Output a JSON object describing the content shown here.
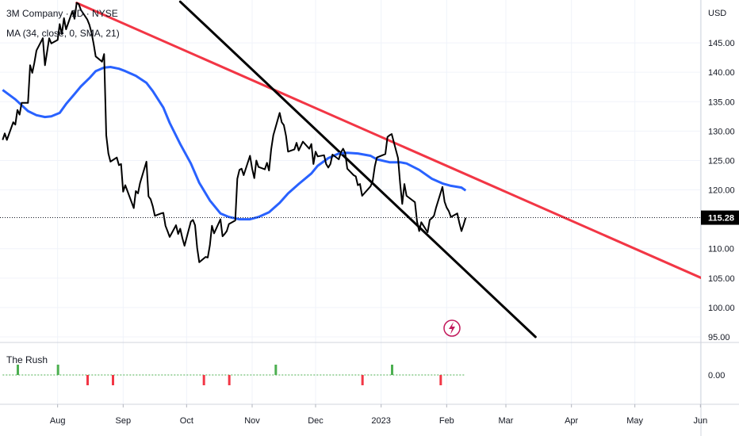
{
  "legend": {
    "title": "3M Company · 1D · NYSE",
    "ma": "MA (34, close, 0, SMA, 21)",
    "rush": "The Rush"
  },
  "colors": {
    "price": "#000000",
    "ma": "#2962ff",
    "trend_red": "#f23645",
    "trend_black": "#000000",
    "badge": "#000000",
    "rush_up": "#4caf50",
    "rush_down": "#f23645",
    "icon": "#c2185b"
  },
  "icons": {
    "event": "lightning-icon"
  },
  "chart_data": {
    "type": "line",
    "currency": "USD",
    "last_price": "115.28",
    "ylim": [
      95,
      152
    ],
    "y_ticks": [
      "145.00",
      "140.00",
      "135.00",
      "130.00",
      "125.00",
      "120.00",
      "110.00",
      "105.00",
      "100.00",
      "95.00"
    ],
    "y_tick_values": [
      145,
      140,
      135,
      130,
      125,
      120,
      110,
      105,
      100,
      95
    ],
    "x_labels": [
      "Aug",
      "Sep",
      "Oct",
      "Nov",
      "Dec",
      "2023",
      "Feb",
      "Mar",
      "Apr",
      "May",
      "Jun"
    ],
    "x_label_dates": [
      "2022-08-01",
      "2022-09-01",
      "2022-10-01",
      "2022-11-01",
      "2022-12-01",
      "2023-01-01",
      "2023-02-01",
      "2023-03-01",
      "2023-04-01",
      "2023-05-01",
      "2023-06-01"
    ],
    "x_range": [
      "2022-07-06",
      "2023-06-18"
    ],
    "series": [
      {
        "kind": "price",
        "points": [
          [
            "2022-07-06",
            128.5
          ],
          [
            "2022-07-07",
            129.6
          ],
          [
            "2022-07-08",
            128.5
          ],
          [
            "2022-07-11",
            131.5
          ],
          [
            "2022-07-12",
            131.1
          ],
          [
            "2022-07-13",
            133.6
          ],
          [
            "2022-07-14",
            132.8
          ],
          [
            "2022-07-15",
            134.8
          ],
          [
            "2022-07-18",
            134.8
          ],
          [
            "2022-07-19",
            141.2
          ],
          [
            "2022-07-20",
            139.9
          ],
          [
            "2022-07-21",
            141.6
          ],
          [
            "2022-07-22",
            143.7
          ],
          [
            "2022-07-25",
            145.8
          ],
          [
            "2022-07-26",
            141.2
          ],
          [
            "2022-07-27",
            143.4
          ],
          [
            "2022-07-28",
            145.8
          ],
          [
            "2022-07-29",
            144.9
          ],
          [
            "2022-08-01",
            145.5
          ],
          [
            "2022-08-02",
            148.2
          ],
          [
            "2022-08-03",
            146.5
          ],
          [
            "2022-08-04",
            149.2
          ],
          [
            "2022-08-05",
            147.3
          ],
          [
            "2022-08-08",
            150.4
          ],
          [
            "2022-08-09",
            149.1
          ],
          [
            "2022-08-10",
            151.8
          ],
          [
            "2022-08-11",
            151.6
          ],
          [
            "2022-08-12",
            150.6
          ],
          [
            "2022-08-15",
            149.0
          ],
          [
            "2022-08-16",
            148.1
          ],
          [
            "2022-08-17",
            146.8
          ],
          [
            "2022-08-18",
            144.9
          ],
          [
            "2022-08-19",
            142.7
          ],
          [
            "2022-08-22",
            141.8
          ],
          [
            "2022-08-23",
            143.1
          ],
          [
            "2022-08-24",
            129.3
          ],
          [
            "2022-08-25",
            126.2
          ],
          [
            "2022-08-26",
            124.8
          ],
          [
            "2022-08-29",
            125.5
          ],
          [
            "2022-08-30",
            124.2
          ],
          [
            "2022-08-31",
            124.4
          ],
          [
            "2022-09-01",
            119.7
          ],
          [
            "2022-09-02",
            120.8
          ],
          [
            "2022-09-06",
            116.9
          ],
          [
            "2022-09-07",
            119.8
          ],
          [
            "2022-09-08",
            119.4
          ],
          [
            "2022-09-09",
            121.2
          ],
          [
            "2022-09-12",
            124.8
          ],
          [
            "2022-09-13",
            118.9
          ],
          [
            "2022-09-14",
            118.4
          ],
          [
            "2022-09-15",
            117.2
          ],
          [
            "2022-09-16",
            115.6
          ],
          [
            "2022-09-19",
            116.0
          ],
          [
            "2022-09-20",
            116.1
          ],
          [
            "2022-09-21",
            113.9
          ],
          [
            "2022-09-22",
            113.0
          ],
          [
            "2022-09-23",
            112.0
          ],
          [
            "2022-09-26",
            114.0
          ],
          [
            "2022-09-27",
            112.5
          ],
          [
            "2022-09-28",
            113.4
          ],
          [
            "2022-09-29",
            111.8
          ],
          [
            "2022-09-30",
            110.5
          ],
          [
            "2022-10-03",
            114.6
          ],
          [
            "2022-10-04",
            114.9
          ],
          [
            "2022-10-05",
            114.0
          ],
          [
            "2022-10-06",
            110.1
          ],
          [
            "2022-10-07",
            107.7
          ],
          [
            "2022-10-10",
            108.6
          ],
          [
            "2022-10-11",
            108.5
          ],
          [
            "2022-10-12",
            110.6
          ],
          [
            "2022-10-13",
            113.9
          ],
          [
            "2022-10-14",
            112.6
          ],
          [
            "2022-10-17",
            115.0
          ],
          [
            "2022-10-18",
            112.1
          ],
          [
            "2022-10-19",
            112.5
          ],
          [
            "2022-10-20",
            113.0
          ],
          [
            "2022-10-21",
            114.2
          ],
          [
            "2022-10-24",
            114.8
          ],
          [
            "2022-10-25",
            121.9
          ],
          [
            "2022-10-26",
            123.4
          ],
          [
            "2022-10-27",
            123.6
          ],
          [
            "2022-10-28",
            122.5
          ],
          [
            "2022-10-31",
            125.8
          ],
          [
            "2022-11-01",
            123.6
          ],
          [
            "2022-11-02",
            122.0
          ],
          [
            "2022-11-03",
            125.0
          ],
          [
            "2022-11-04",
            123.9
          ],
          [
            "2022-11-07",
            123.5
          ],
          [
            "2022-11-08",
            124.6
          ],
          [
            "2022-11-09",
            123.3
          ],
          [
            "2022-11-10",
            126.9
          ],
          [
            "2022-11-11",
            129.3
          ],
          [
            "2022-11-14",
            133.1
          ],
          [
            "2022-11-15",
            131.5
          ],
          [
            "2022-11-16",
            131.0
          ],
          [
            "2022-11-17",
            129.2
          ],
          [
            "2022-11-18",
            126.5
          ],
          [
            "2022-11-21",
            126.9
          ],
          [
            "2022-11-22",
            128.0
          ],
          [
            "2022-11-23",
            126.7
          ],
          [
            "2022-11-25",
            128.2
          ],
          [
            "2022-11-28",
            127.0
          ],
          [
            "2022-11-29",
            127.8
          ],
          [
            "2022-11-30",
            124.4
          ],
          [
            "2022-12-01",
            126.5
          ],
          [
            "2022-12-02",
            125.7
          ],
          [
            "2022-12-05",
            125.9
          ],
          [
            "2022-12-06",
            124.4
          ],
          [
            "2022-12-07",
            123.8
          ],
          [
            "2022-12-08",
            124.4
          ],
          [
            "2022-12-09",
            126.0
          ],
          [
            "2022-12-12",
            125.2
          ],
          [
            "2022-12-13",
            126.4
          ],
          [
            "2022-12-14",
            127.0
          ],
          [
            "2022-12-15",
            126.3
          ],
          [
            "2022-12-16",
            123.6
          ],
          [
            "2022-12-19",
            122.5
          ],
          [
            "2022-12-20",
            122.3
          ],
          [
            "2022-12-21",
            120.8
          ],
          [
            "2022-12-22",
            121.0
          ],
          [
            "2022-12-23",
            119.0
          ],
          [
            "2022-12-27",
            120.6
          ],
          [
            "2022-12-28",
            121.5
          ],
          [
            "2022-12-29",
            124.0
          ],
          [
            "2022-12-30",
            125.5
          ],
          [
            "2023-01-03",
            126.1
          ],
          [
            "2023-01-04",
            129.0
          ],
          [
            "2023-01-05",
            129.3
          ],
          [
            "2023-01-06",
            129.5
          ],
          [
            "2023-01-09",
            125.4
          ],
          [
            "2023-01-10",
            121.0
          ],
          [
            "2023-01-11",
            117.6
          ],
          [
            "2023-01-12",
            121.0
          ],
          [
            "2023-01-13",
            119.0
          ],
          [
            "2023-01-17",
            117.9
          ],
          [
            "2023-01-18",
            114.6
          ],
          [
            "2023-01-19",
            113.0
          ],
          [
            "2023-01-20",
            114.5
          ],
          [
            "2023-01-23",
            112.8
          ],
          [
            "2023-01-24",
            114.9
          ],
          [
            "2023-01-25",
            115.2
          ],
          [
            "2023-01-26",
            115.6
          ],
          [
            "2023-01-27",
            117.0
          ],
          [
            "2023-01-30",
            120.5
          ],
          [
            "2023-01-31",
            118.0
          ],
          [
            "2023-02-01",
            117.0
          ],
          [
            "2023-02-02",
            116.4
          ],
          [
            "2023-02-03",
            115.4
          ],
          [
            "2023-02-06",
            116.0
          ],
          [
            "2023-02-07",
            114.4
          ],
          [
            "2023-02-08",
            113.0
          ],
          [
            "2023-02-09",
            114.1
          ],
          [
            "2023-02-10",
            115.28
          ]
        ]
      },
      {
        "kind": "ma",
        "points": [
          [
            "2022-07-06",
            137.0
          ],
          [
            "2022-07-12",
            135.4
          ],
          [
            "2022-07-18",
            133.4
          ],
          [
            "2022-07-22",
            132.7
          ],
          [
            "2022-07-26",
            132.4
          ],
          [
            "2022-07-29",
            132.5
          ],
          [
            "2022-08-02",
            133.1
          ],
          [
            "2022-08-05",
            134.6
          ],
          [
            "2022-08-09",
            136.3
          ],
          [
            "2022-08-12",
            137.6
          ],
          [
            "2022-08-16",
            139.0
          ],
          [
            "2022-08-19",
            140.2
          ],
          [
            "2022-08-23",
            140.8
          ],
          [
            "2022-08-26",
            140.9
          ],
          [
            "2022-08-30",
            140.6
          ],
          [
            "2022-09-02",
            140.2
          ],
          [
            "2022-09-07",
            139.4
          ],
          [
            "2022-09-12",
            138.2
          ],
          [
            "2022-09-15",
            136.8
          ],
          [
            "2022-09-20",
            134.0
          ],
          [
            "2022-09-23",
            131.4
          ],
          [
            "2022-09-28",
            127.8
          ],
          [
            "2022-10-03",
            124.5
          ],
          [
            "2022-10-07",
            121.2
          ],
          [
            "2022-10-12",
            118.2
          ],
          [
            "2022-10-17",
            116.0
          ],
          [
            "2022-10-21",
            115.4
          ],
          [
            "2022-10-26",
            115.0
          ],
          [
            "2022-10-31",
            115.0
          ],
          [
            "2022-11-04",
            115.4
          ],
          [
            "2022-11-09",
            116.2
          ],
          [
            "2022-11-14",
            117.8
          ],
          [
            "2022-11-18",
            119.4
          ],
          [
            "2022-11-23",
            121.0
          ],
          [
            "2022-11-29",
            122.8
          ],
          [
            "2022-12-02",
            124.1
          ],
          [
            "2022-12-07",
            125.4
          ],
          [
            "2022-12-12",
            126.2
          ],
          [
            "2022-12-16",
            126.3
          ],
          [
            "2022-12-21",
            126.2
          ],
          [
            "2022-12-27",
            125.8
          ],
          [
            "2022-12-30",
            125.2
          ],
          [
            "2023-01-05",
            124.7
          ],
          [
            "2023-01-10",
            124.7
          ],
          [
            "2023-01-13",
            124.5
          ],
          [
            "2023-01-19",
            123.4
          ],
          [
            "2023-01-25",
            121.9
          ],
          [
            "2023-01-30",
            121.1
          ],
          [
            "2023-02-03",
            120.7
          ],
          [
            "2023-02-08",
            120.4
          ],
          [
            "2023-02-10",
            119.9
          ]
        ]
      }
    ],
    "trend_lines": [
      {
        "color": "red",
        "from": [
          "2022-08-10",
          151.8
        ],
        "to": [
          "2023-06-18",
          102.4
        ]
      },
      {
        "color": "black",
        "from": [
          "2022-09-28",
          152.0
        ],
        "to": [
          "2023-03-15",
          95.0
        ]
      }
    ],
    "last_price_line": 115.28,
    "indicator": {
      "name": "The Rush",
      "zero_label": "0.00",
      "signals": [
        {
          "date": "2022-07-13",
          "dir": "up"
        },
        {
          "date": "2022-08-01",
          "dir": "up"
        },
        {
          "date": "2022-08-15",
          "dir": "down"
        },
        {
          "date": "2022-08-27",
          "dir": "down"
        },
        {
          "date": "2022-10-09",
          "dir": "down"
        },
        {
          "date": "2022-10-21",
          "dir": "down"
        },
        {
          "date": "2022-11-12",
          "dir": "up"
        },
        {
          "date": "2022-12-23",
          "dir": "down"
        },
        {
          "date": "2023-01-06",
          "dir": "up"
        },
        {
          "date": "2023-01-29",
          "dir": "down"
        }
      ],
      "end_date": "2023-02-10"
    }
  }
}
